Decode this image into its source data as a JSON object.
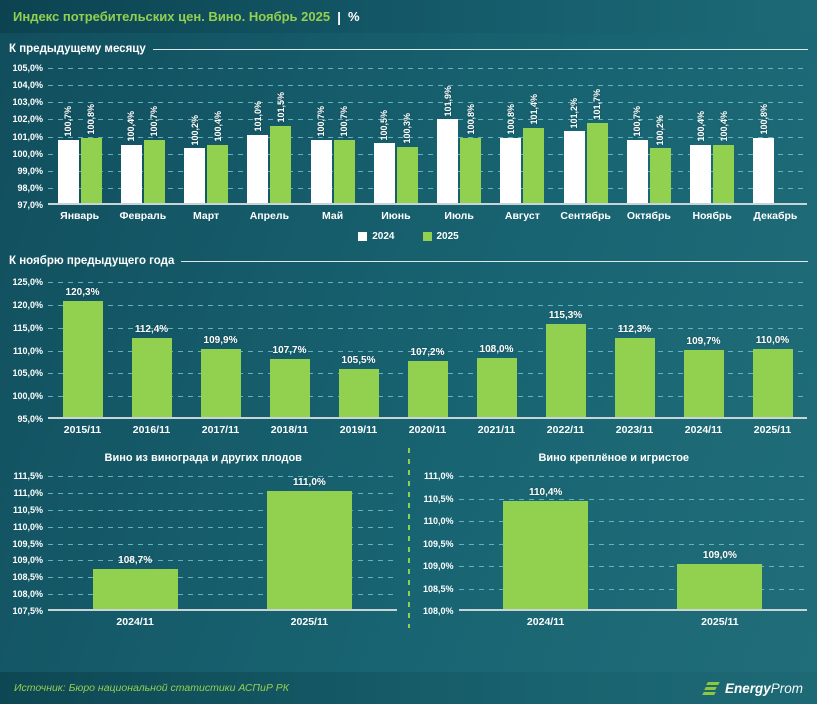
{
  "header": {
    "title": "Индекс потребительских цен. Вино. Ноябрь 2025",
    "separator": "|",
    "unit": "%"
  },
  "colors": {
    "accent_green": "#92d050",
    "series_2024": "#ffffff",
    "series_2025": "#92d050",
    "background_teal": "#186371",
    "gridline": "#74c7d6",
    "axis": "#c9d4d6"
  },
  "chart_data": [
    {
      "type": "bar",
      "section_title": "К предыдущему месяцу",
      "categories": [
        "Январь",
        "Февраль",
        "Март",
        "Апрель",
        "Май",
        "Июнь",
        "Июль",
        "Август",
        "Сентябрь",
        "Октябрь",
        "Ноябрь",
        "Декабрь"
      ],
      "series": [
        {
          "name": "2024",
          "color": "#ffffff",
          "values": [
            100.7,
            100.4,
            100.2,
            101.0,
            100.7,
            100.5,
            101.9,
            100.8,
            101.2,
            100.7,
            100.4,
            100.8
          ]
        },
        {
          "name": "2025",
          "color": "#92d050",
          "values": [
            100.8,
            100.7,
            100.4,
            101.5,
            100.7,
            100.3,
            100.8,
            101.4,
            101.7,
            100.2,
            100.4,
            null
          ]
        }
      ],
      "ylim": [
        97,
        105
      ],
      "ytick_step": 1,
      "grid": true,
      "legend_position": "bottom",
      "vertical_labels": true
    },
    {
      "type": "bar",
      "section_title": "К ноябрю предыдущего года",
      "categories": [
        "2015/11",
        "2016/11",
        "2017/11",
        "2018/11",
        "2019/11",
        "2020/11",
        "2021/11",
        "2022/11",
        "2023/11",
        "2024/11",
        "2025/11"
      ],
      "series": [
        {
          "name": "2025",
          "color": "#92d050",
          "values": [
            120.3,
            112.4,
            109.9,
            107.7,
            105.5,
            107.2,
            108.0,
            115.3,
            112.3,
            109.7,
            110.0
          ]
        }
      ],
      "ylim": [
        95,
        125
      ],
      "ytick_step": 5,
      "grid": true
    },
    {
      "type": "bar",
      "title": "Вино из винограда и других плодов",
      "categories": [
        "2024/11",
        "2025/11"
      ],
      "series": [
        {
          "name": "ИПЦ",
          "color": "#92d050",
          "values": [
            108.7,
            111.0
          ]
        }
      ],
      "ylim": [
        107.5,
        111.5
      ],
      "ytick_step": 0.5,
      "grid": true
    },
    {
      "type": "bar",
      "title": "Вино креплёное и игристое",
      "categories": [
        "2024/11",
        "2025/11"
      ],
      "series": [
        {
          "name": "ИПЦ",
          "color": "#92d050",
          "values": [
            110.4,
            109.0
          ]
        }
      ],
      "ylim": [
        108.0,
        111.0
      ],
      "ytick_step": 0.5,
      "grid": true
    }
  ],
  "legend": {
    "items": [
      {
        "label": "2024",
        "color": "#ffffff"
      },
      {
        "label": "2025",
        "color": "#92d050"
      }
    ]
  },
  "footer": {
    "source": "Источник: Бюро национальной статистики АСПиР РК",
    "logo_bold": "Energy",
    "logo_light": "Prom"
  }
}
